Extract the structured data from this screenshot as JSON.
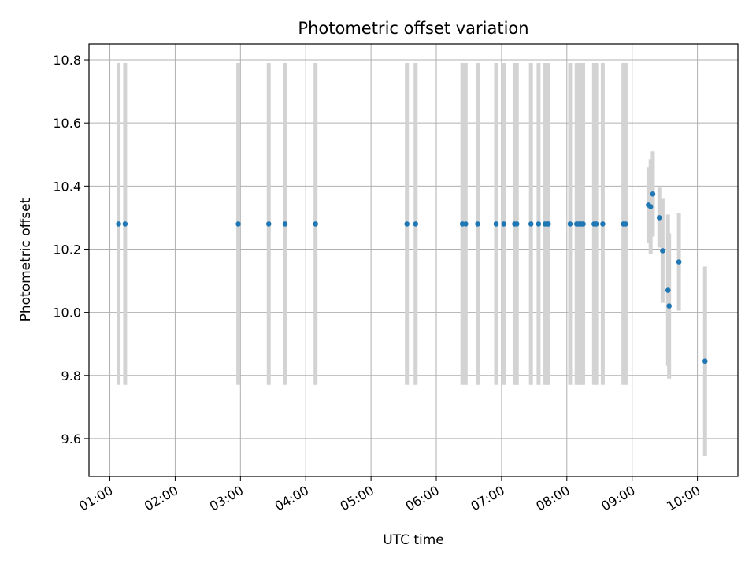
{
  "chart_data": {
    "type": "scatter",
    "title": "Photometric offset variation",
    "xlabel": "UTC time",
    "ylabel": "Photometric offset",
    "xlim_hours": [
      0.68,
      10.62
    ],
    "ylim": [
      9.48,
      10.85
    ],
    "x_ticks": [
      {
        "hour": 1,
        "label": "01:00"
      },
      {
        "hour": 2,
        "label": "02:00"
      },
      {
        "hour": 3,
        "label": "03:00"
      },
      {
        "hour": 4,
        "label": "04:00"
      },
      {
        "hour": 5,
        "label": "05:00"
      },
      {
        "hour": 6,
        "label": "06:00"
      },
      {
        "hour": 7,
        "label": "07:00"
      },
      {
        "hour": 8,
        "label": "08:00"
      },
      {
        "hour": 9,
        "label": "09:00"
      },
      {
        "hour": 10,
        "label": "10:00"
      }
    ],
    "y_ticks": [
      {
        "value": 9.6,
        "label": "9.6"
      },
      {
        "value": 9.8,
        "label": "9.8"
      },
      {
        "value": 10.0,
        "label": "10.0"
      },
      {
        "value": 10.2,
        "label": "10.2"
      },
      {
        "value": 10.4,
        "label": "10.4"
      },
      {
        "value": 10.6,
        "label": "10.6"
      },
      {
        "value": 10.8,
        "label": "10.8"
      }
    ],
    "grid": true,
    "marker_color": "#1f77b4",
    "errorbar_color": "#d3d3d3",
    "points": [
      {
        "time": "01:08",
        "y": 10.28,
        "err": 0.51
      },
      {
        "time": "01:14",
        "y": 10.28,
        "err": 0.51
      },
      {
        "time": "02:58",
        "y": 10.28,
        "err": 0.51
      },
      {
        "time": "03:26",
        "y": 10.28,
        "err": 0.51
      },
      {
        "time": "03:41",
        "y": 10.28,
        "err": 0.51
      },
      {
        "time": "04:09",
        "y": 10.28,
        "err": 0.51
      },
      {
        "time": "05:33",
        "y": 10.28,
        "err": 0.51
      },
      {
        "time": "05:41",
        "y": 10.28,
        "err": 0.51
      },
      {
        "time": "06:24",
        "y": 10.28,
        "err": 0.51
      },
      {
        "time": "06:27",
        "y": 10.28,
        "err": 0.51
      },
      {
        "time": "06:38",
        "y": 10.28,
        "err": 0.51
      },
      {
        "time": "06:55",
        "y": 10.28,
        "err": 0.51
      },
      {
        "time": "07:02",
        "y": 10.28,
        "err": 0.51
      },
      {
        "time": "07:12",
        "y": 10.28,
        "err": 0.51
      },
      {
        "time": "07:14",
        "y": 10.28,
        "err": 0.51
      },
      {
        "time": "07:27",
        "y": 10.28,
        "err": 0.51
      },
      {
        "time": "07:34",
        "y": 10.28,
        "err": 0.51
      },
      {
        "time": "07:40",
        "y": 10.28,
        "err": 0.51
      },
      {
        "time": "07:42",
        "y": 10.28,
        "err": 0.51
      },
      {
        "time": "07:43",
        "y": 10.28,
        "err": 0.51
      },
      {
        "time": "08:03",
        "y": 10.28,
        "err": 0.51
      },
      {
        "time": "08:09",
        "y": 10.28,
        "err": 0.51
      },
      {
        "time": "08:11",
        "y": 10.28,
        "err": 0.51
      },
      {
        "time": "08:13",
        "y": 10.28,
        "err": 0.51
      },
      {
        "time": "08:15",
        "y": 10.28,
        "err": 0.51
      },
      {
        "time": "08:25",
        "y": 10.28,
        "err": 0.51
      },
      {
        "time": "08:27",
        "y": 10.28,
        "err": 0.51
      },
      {
        "time": "08:33",
        "y": 10.28,
        "err": 0.51
      },
      {
        "time": "08:52",
        "y": 10.28,
        "err": 0.51
      },
      {
        "time": "08:54",
        "y": 10.28,
        "err": 0.51
      },
      {
        "time": "09:15",
        "y": 10.34,
        "err": 0.12
      },
      {
        "time": "09:17",
        "y": 10.335,
        "err": 0.15
      },
      {
        "time": "09:19",
        "y": 10.375,
        "err": 0.135
      },
      {
        "time": "09:25",
        "y": 10.3,
        "err": 0.095
      },
      {
        "time": "09:28",
        "y": 10.195,
        "err": 0.165
      },
      {
        "time": "09:33",
        "y": 10.07,
        "err": 0.24
      },
      {
        "time": "09:34",
        "y": 10.02,
        "err": 0.23
      },
      {
        "time": "09:43",
        "y": 10.16,
        "err": 0.155
      },
      {
        "time": "10:07",
        "y": 9.845,
        "err": 0.3
      }
    ]
  }
}
